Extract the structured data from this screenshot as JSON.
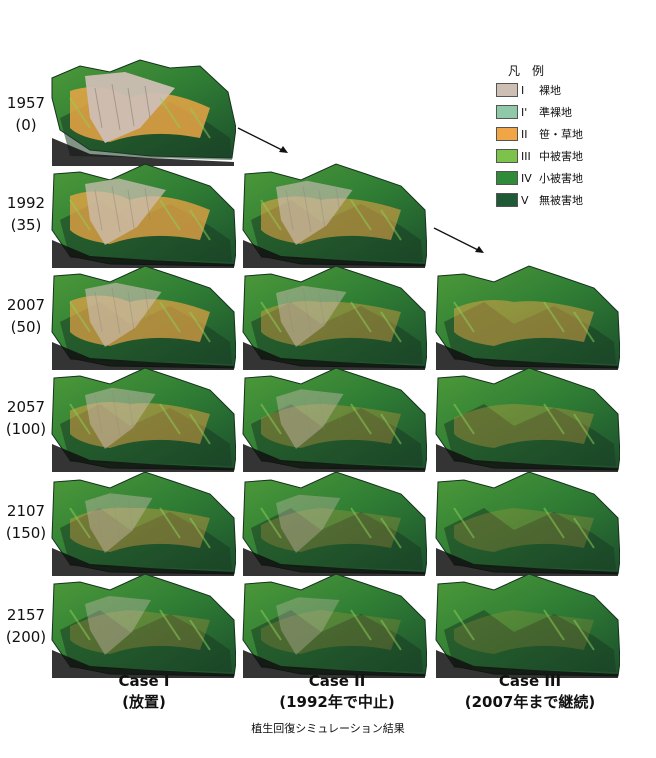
{
  "rows": [
    {
      "year": "1957",
      "sub": "(0)"
    },
    {
      "year": "1992",
      "sub": "(35)"
    },
    {
      "year": "2007",
      "sub": "(50)"
    },
    {
      "year": "2057",
      "sub": "(100)"
    },
    {
      "year": "2107",
      "sub": "(150)"
    },
    {
      "year": "2157",
      "sub": "(200)"
    }
  ],
  "cases": [
    {
      "title": "Case I",
      "sub": "(放置)"
    },
    {
      "title": "Case II",
      "sub": "(1992年で中止)"
    },
    {
      "title": "Case III",
      "sub": "(2007年まで継続)"
    }
  ],
  "legend": {
    "title": "凡　例",
    "items": [
      {
        "roman": "I",
        "label": "裸地",
        "color": "#cdbfb4"
      },
      {
        "roman": "I'",
        "label": "準裸地",
        "color": "#8fc9a8"
      },
      {
        "roman": "II",
        "label": "笹・草地",
        "color": "#f0a647"
      },
      {
        "roman": "III",
        "label": "中被害地",
        "color": "#7dc24a"
      },
      {
        "roman": "IV",
        "label": "小被害地",
        "color": "#2f8a3a"
      },
      {
        "roman": "V",
        "label": "無被害地",
        "color": "#1f5a36"
      }
    ]
  },
  "caption": "植生回復シミュレーション結果"
}
